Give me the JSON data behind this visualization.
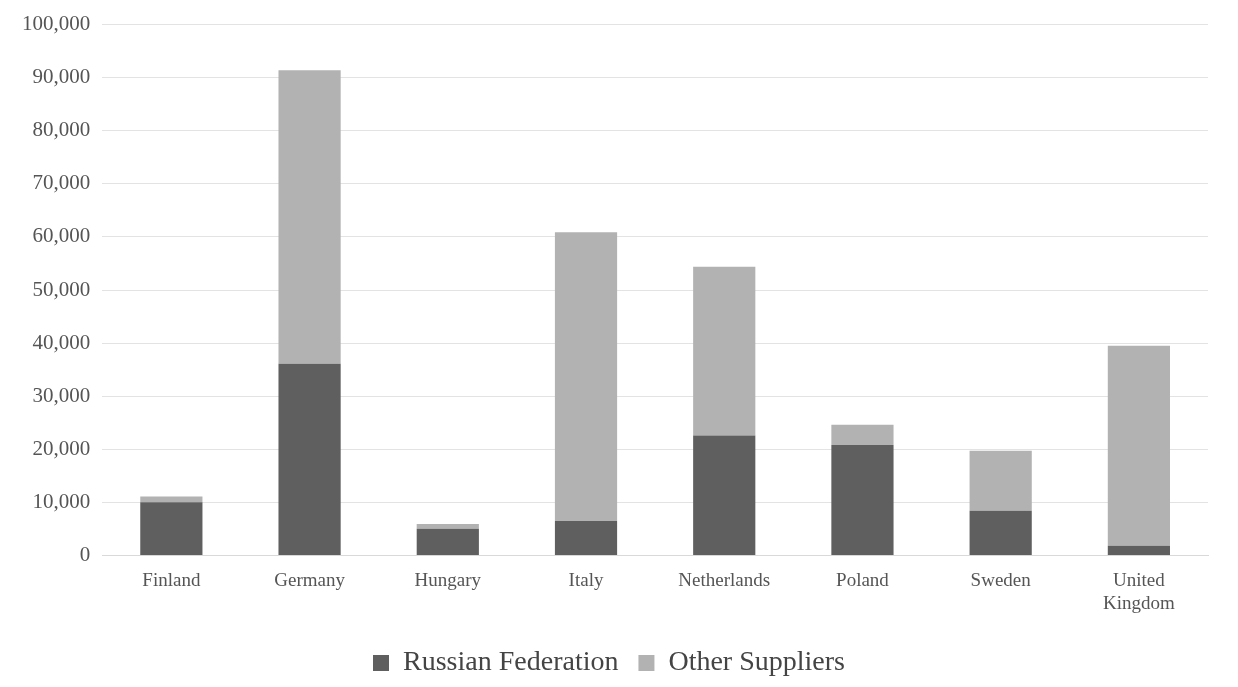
{
  "chart_data": {
    "type": "bar",
    "stacked": true,
    "categories": [
      "Finland",
      "Germany",
      "Hungary",
      "Italy",
      "Netherlands",
      "Poland",
      "Sweden",
      "United Kingdom"
    ],
    "series": [
      {
        "name": "Russian Federation",
        "color": "#5f5f5f",
        "values": [
          10000,
          36100,
          5000,
          6500,
          22600,
          20800,
          8400,
          1800
        ]
      },
      {
        "name": "Other Suppliers",
        "color": "#b2b2b2",
        "values": [
          1100,
          55300,
          900,
          54400,
          31800,
          3800,
          11300,
          37700
        ]
      }
    ],
    "ylim": [
      0,
      100000
    ],
    "yticks": [
      {
        "value": 0,
        "label": "0"
      },
      {
        "value": 10000,
        "label": "10,000"
      },
      {
        "value": 20000,
        "label": "20,000"
      },
      {
        "value": 30000,
        "label": "30,000"
      },
      {
        "value": 40000,
        "label": "40,000"
      },
      {
        "value": 50000,
        "label": "50,000"
      },
      {
        "value": 60000,
        "label": "60,000"
      },
      {
        "value": 70000,
        "label": "70,000"
      },
      {
        "value": 80000,
        "label": "80,000"
      },
      {
        "value": 90000,
        "label": "90,000"
      },
      {
        "value": 100000,
        "label": "100,000"
      }
    ],
    "grid": "y",
    "legend": "bottom"
  }
}
